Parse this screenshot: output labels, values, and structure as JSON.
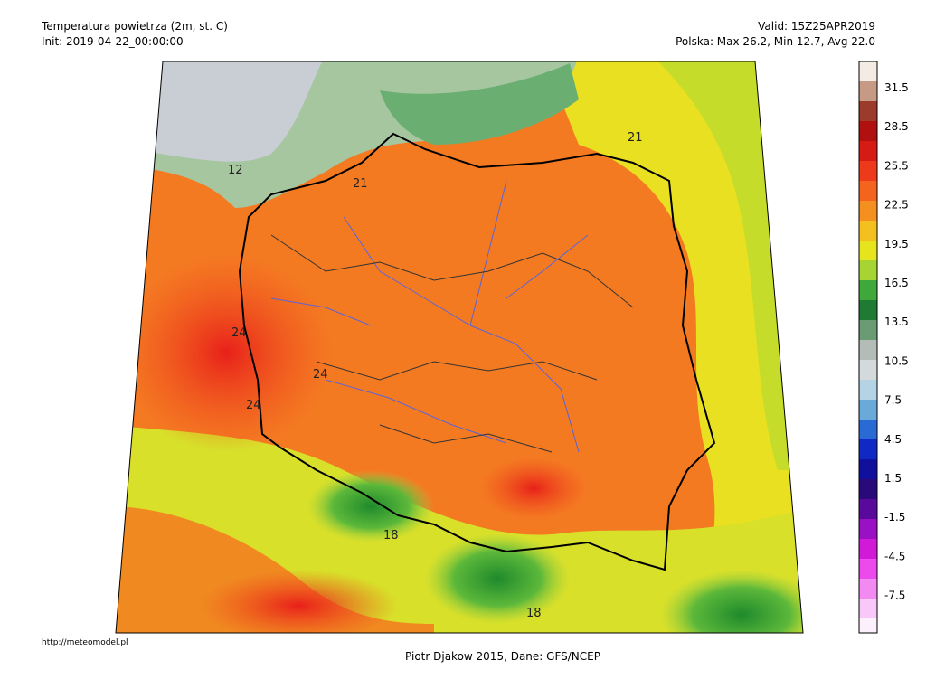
{
  "header": {
    "title": "Temperatura powietrza (2m, st. C)",
    "init": "Init: 2019-04-22_00:00:00",
    "valid": "Valid: 15Z25APR2019",
    "stats": "Polska: Max 26.2, Min 12.7, Avg 22.0"
  },
  "colorbar": {
    "labels": [
      "31.5",
      "28.5",
      "25.5",
      "22.5",
      "19.5",
      "16.5",
      "13.5",
      "10.5",
      "7.5",
      "4.5",
      "1.5",
      "-1.5",
      "-4.5",
      "-7.5"
    ]
  },
  "map": {
    "contour_labels": [
      "21",
      "24",
      "24",
      "24",
      "21",
      "18",
      "18",
      "12"
    ]
  },
  "footer": {
    "url": "http://meteomodel.pl",
    "credit": "Piotr Djakow 2015, Dane: GFS/NCEP"
  }
}
